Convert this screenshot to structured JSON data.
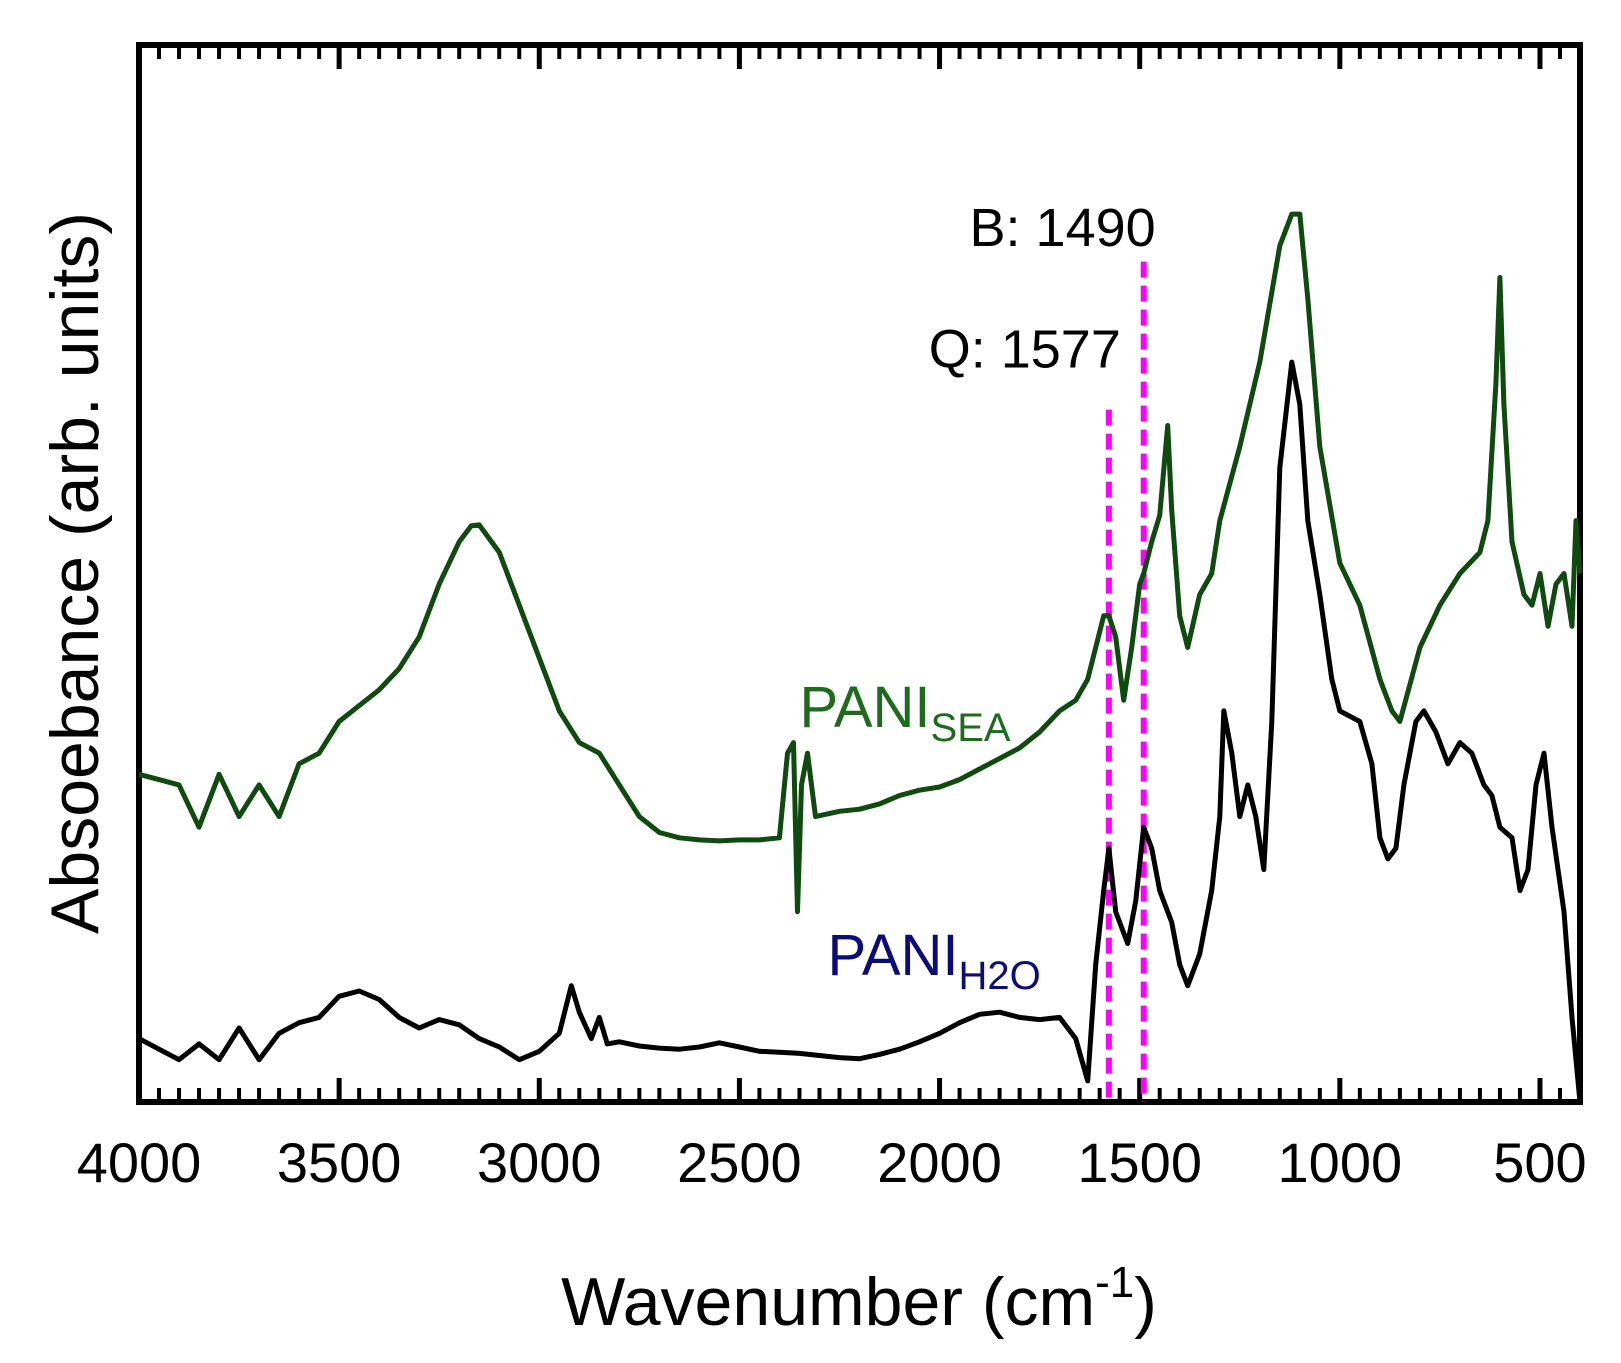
{
  "chart_data": {
    "type": "line",
    "title": "",
    "xlabel": "Wavenumber (cm",
    "xlabel_sup": "-1",
    "xlabel_close": ")",
    "ylabel": "Absoebance (arb. units)",
    "xlim": [
      4000,
      400
    ],
    "ylim": [
      0,
      1
    ],
    "x_ticks": [
      4000,
      3500,
      3000,
      2500,
      2000,
      1500,
      1000,
      500
    ],
    "x_tick_labels": [
      "4000",
      "3500",
      "3000",
      "2500",
      "2000",
      "1500",
      "1000",
      "500"
    ],
    "y_ticks_shown": false,
    "series": [
      {
        "name": "PANI",
        "subscript": "SEA",
        "color": "#0f4a0f",
        "label_color": "#1e6b1e",
        "label_anchor": {
          "x": 2350,
          "y": 0.355
        },
        "points": [
          [
            4000,
            0.31
          ],
          [
            3950,
            0.305
          ],
          [
            3900,
            0.3
          ],
          [
            3850,
            0.26
          ],
          [
            3800,
            0.31
          ],
          [
            3750,
            0.27
          ],
          [
            3700,
            0.3
          ],
          [
            3650,
            0.27
          ],
          [
            3600,
            0.32
          ],
          [
            3550,
            0.33
          ],
          [
            3500,
            0.36
          ],
          [
            3450,
            0.375
          ],
          [
            3400,
            0.39
          ],
          [
            3350,
            0.41
          ],
          [
            3300,
            0.44
          ],
          [
            3250,
            0.49
          ],
          [
            3200,
            0.53
          ],
          [
            3170,
            0.545
          ],
          [
            3150,
            0.546
          ],
          [
            3100,
            0.52
          ],
          [
            3050,
            0.47
          ],
          [
            3000,
            0.42
          ],
          [
            2950,
            0.37
          ],
          [
            2900,
            0.34
          ],
          [
            2850,
            0.33
          ],
          [
            2800,
            0.3
          ],
          [
            2750,
            0.27
          ],
          [
            2700,
            0.255
          ],
          [
            2650,
            0.25
          ],
          [
            2600,
            0.248
          ],
          [
            2550,
            0.247
          ],
          [
            2500,
            0.248
          ],
          [
            2450,
            0.248
          ],
          [
            2400,
            0.25
          ],
          [
            2380,
            0.33
          ],
          [
            2365,
            0.34
          ],
          [
            2355,
            0.18
          ],
          [
            2345,
            0.3
          ],
          [
            2330,
            0.33
          ],
          [
            2310,
            0.27
          ],
          [
            2250,
            0.275
          ],
          [
            2200,
            0.277
          ],
          [
            2150,
            0.282
          ],
          [
            2100,
            0.29
          ],
          [
            2050,
            0.295
          ],
          [
            2000,
            0.298
          ],
          [
            1950,
            0.305
          ],
          [
            1900,
            0.315
          ],
          [
            1850,
            0.325
          ],
          [
            1800,
            0.335
          ],
          [
            1750,
            0.35
          ],
          [
            1700,
            0.37
          ],
          [
            1660,
            0.38
          ],
          [
            1630,
            0.4
          ],
          [
            1610,
            0.43
          ],
          [
            1590,
            0.46
          ],
          [
            1577,
            0.46
          ],
          [
            1560,
            0.44
          ],
          [
            1540,
            0.38
          ],
          [
            1520,
            0.43
          ],
          [
            1500,
            0.49
          ],
          [
            1490,
            0.5
          ],
          [
            1470,
            0.53
          ],
          [
            1450,
            0.555
          ],
          [
            1430,
            0.64
          ],
          [
            1420,
            0.56
          ],
          [
            1400,
            0.46
          ],
          [
            1380,
            0.43
          ],
          [
            1350,
            0.48
          ],
          [
            1320,
            0.5
          ],
          [
            1300,
            0.55
          ],
          [
            1250,
            0.62
          ],
          [
            1200,
            0.7
          ],
          [
            1150,
            0.81
          ],
          [
            1120,
            0.84
          ],
          [
            1100,
            0.84
          ],
          [
            1080,
            0.76
          ],
          [
            1050,
            0.62
          ],
          [
            1000,
            0.51
          ],
          [
            950,
            0.47
          ],
          [
            900,
            0.4
          ],
          [
            870,
            0.37
          ],
          [
            850,
            0.36
          ],
          [
            800,
            0.43
          ],
          [
            750,
            0.47
          ],
          [
            700,
            0.5
          ],
          [
            650,
            0.52
          ],
          [
            630,
            0.55
          ],
          [
            610,
            0.68
          ],
          [
            600,
            0.78
          ],
          [
            590,
            0.66
          ],
          [
            570,
            0.53
          ],
          [
            540,
            0.48
          ],
          [
            520,
            0.47
          ],
          [
            500,
            0.5
          ],
          [
            480,
            0.45
          ],
          [
            460,
            0.49
          ],
          [
            440,
            0.5
          ],
          [
            420,
            0.45
          ],
          [
            410,
            0.55
          ],
          [
            400,
            0.5
          ]
        ]
      },
      {
        "name": "PANI",
        "subscript": "H2O",
        "color": "#000000",
        "label_color": "#0b0b7a",
        "label_anchor": {
          "x": 2280,
          "y": 0.12
        },
        "points": [
          [
            4000,
            0.06
          ],
          [
            3950,
            0.05
          ],
          [
            3900,
            0.04
          ],
          [
            3850,
            0.055
          ],
          [
            3800,
            0.04
          ],
          [
            3750,
            0.07
          ],
          [
            3700,
            0.04
          ],
          [
            3650,
            0.065
          ],
          [
            3600,
            0.075
          ],
          [
            3550,
            0.08
          ],
          [
            3500,
            0.1
          ],
          [
            3450,
            0.105
          ],
          [
            3400,
            0.097
          ],
          [
            3350,
            0.08
          ],
          [
            3300,
            0.07
          ],
          [
            3250,
            0.078
          ],
          [
            3200,
            0.073
          ],
          [
            3150,
            0.06
          ],
          [
            3100,
            0.052
          ],
          [
            3050,
            0.04
          ],
          [
            3000,
            0.048
          ],
          [
            2950,
            0.065
          ],
          [
            2920,
            0.11
          ],
          [
            2900,
            0.085
          ],
          [
            2870,
            0.06
          ],
          [
            2850,
            0.08
          ],
          [
            2830,
            0.055
          ],
          [
            2800,
            0.057
          ],
          [
            2750,
            0.053
          ],
          [
            2700,
            0.051
          ],
          [
            2650,
            0.05
          ],
          [
            2600,
            0.052
          ],
          [
            2550,
            0.056
          ],
          [
            2500,
            0.052
          ],
          [
            2450,
            0.048
          ],
          [
            2400,
            0.047
          ],
          [
            2350,
            0.046
          ],
          [
            2300,
            0.044
          ],
          [
            2250,
            0.042
          ],
          [
            2200,
            0.041
          ],
          [
            2150,
            0.045
          ],
          [
            2100,
            0.05
          ],
          [
            2050,
            0.057
          ],
          [
            2000,
            0.065
          ],
          [
            1950,
            0.075
          ],
          [
            1900,
            0.083
          ],
          [
            1850,
            0.085
          ],
          [
            1800,
            0.08
          ],
          [
            1750,
            0.078
          ],
          [
            1700,
            0.08
          ],
          [
            1660,
            0.06
          ],
          [
            1630,
            0.02
          ],
          [
            1610,
            0.13
          ],
          [
            1590,
            0.2
          ],
          [
            1577,
            0.24
          ],
          [
            1560,
            0.18
          ],
          [
            1530,
            0.15
          ],
          [
            1510,
            0.19
          ],
          [
            1490,
            0.26
          ],
          [
            1470,
            0.24
          ],
          [
            1450,
            0.2
          ],
          [
            1420,
            0.17
          ],
          [
            1400,
            0.13
          ],
          [
            1380,
            0.11
          ],
          [
            1350,
            0.14
          ],
          [
            1320,
            0.2
          ],
          [
            1300,
            0.27
          ],
          [
            1290,
            0.37
          ],
          [
            1270,
            0.33
          ],
          [
            1250,
            0.27
          ],
          [
            1230,
            0.3
          ],
          [
            1210,
            0.27
          ],
          [
            1190,
            0.22
          ],
          [
            1170,
            0.36
          ],
          [
            1150,
            0.6
          ],
          [
            1120,
            0.7
          ],
          [
            1100,
            0.66
          ],
          [
            1080,
            0.55
          ],
          [
            1050,
            0.48
          ],
          [
            1020,
            0.4
          ],
          [
            1000,
            0.37
          ],
          [
            950,
            0.36
          ],
          [
            920,
            0.32
          ],
          [
            900,
            0.25
          ],
          [
            880,
            0.23
          ],
          [
            860,
            0.24
          ],
          [
            840,
            0.3
          ],
          [
            810,
            0.36
          ],
          [
            790,
            0.37
          ],
          [
            760,
            0.35
          ],
          [
            730,
            0.32
          ],
          [
            700,
            0.34
          ],
          [
            670,
            0.33
          ],
          [
            640,
            0.3
          ],
          [
            620,
            0.29
          ],
          [
            600,
            0.26
          ],
          [
            570,
            0.25
          ],
          [
            550,
            0.2
          ],
          [
            530,
            0.22
          ],
          [
            510,
            0.3
          ],
          [
            490,
            0.33
          ],
          [
            470,
            0.26
          ],
          [
            440,
            0.18
          ],
          [
            420,
            0.08
          ],
          [
            400,
            0.0
          ]
        ]
      }
    ],
    "reference_lines": [
      {
        "x": 1577,
        "label": "Q: 1577",
        "color": "#ff00ff",
        "y_top": 0.655,
        "label_y": 0.695
      },
      {
        "x": 1490,
        "label": "B: 1490",
        "color": "#ff00ff",
        "y_top": 0.795,
        "label_y": 0.81
      }
    ],
    "grid": false,
    "legend": "none"
  }
}
